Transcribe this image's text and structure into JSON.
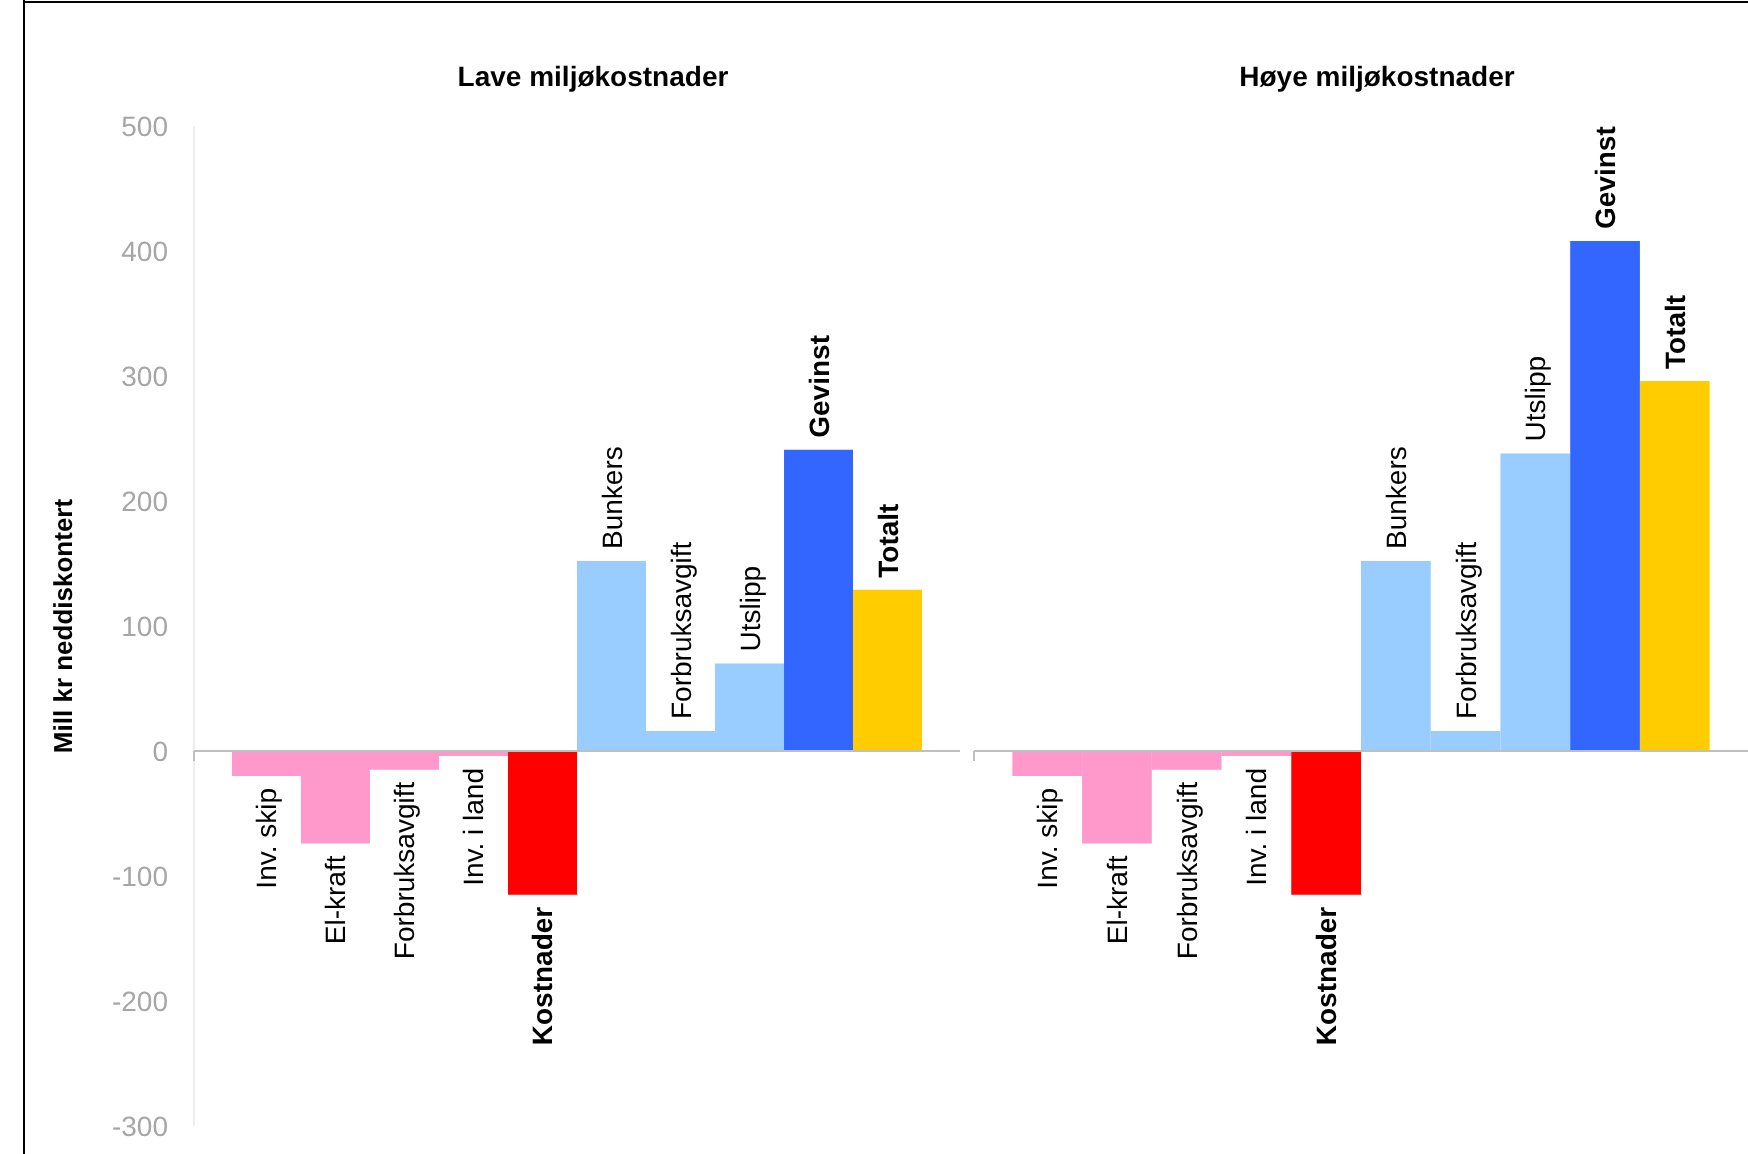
{
  "chart_data": [
    {
      "type": "bar",
      "title": "Lave miljøkostnader",
      "ylabel": "Mill kr neddiskontert",
      "categories": [
        "Inv. skip",
        "El-kraft",
        "Forbruksavgift",
        "Inv. i land",
        "Kostnader",
        "Bunkers",
        "Forbruksavgift",
        "Utslipp",
        "Gevinst",
        "Totalt"
      ],
      "values": [
        -20,
        -74,
        -15,
        -4,
        -115,
        152,
        16,
        70,
        241,
        129
      ],
      "colors": [
        "#ff99cc",
        "#ff99cc",
        "#ff99cc",
        "#ff99cc",
        "#ff0000",
        "#99ccff",
        "#99ccff",
        "#99ccff",
        "#3366ff",
        "#ffcc00"
      ],
      "ylim": [
        -300,
        500
      ],
      "yticks": [
        -300,
        -200,
        -100,
        0,
        100,
        200,
        300,
        400,
        500
      ],
      "grid": false
    },
    {
      "type": "bar",
      "title": "Høye miljøkostnader",
      "categories": [
        "Inv. skip",
        "El-kraft",
        "Forbruksavgift",
        "Inv. i land",
        "Kostnader",
        "Bunkers",
        "Forbruksavgift",
        "Utslipp",
        "Gevinst",
        "Totalt"
      ],
      "values": [
        -20,
        -74,
        -15,
        -4,
        -115,
        152,
        16,
        238,
        408,
        296
      ],
      "colors": [
        "#ff99cc",
        "#ff99cc",
        "#ff99cc",
        "#ff99cc",
        "#ff0000",
        "#99ccff",
        "#99ccff",
        "#99ccff",
        "#3366ff",
        "#ffcc00"
      ],
      "ylim": [
        -300,
        500
      ],
      "tick_labels": "x",
      "grid": false
    }
  ]
}
